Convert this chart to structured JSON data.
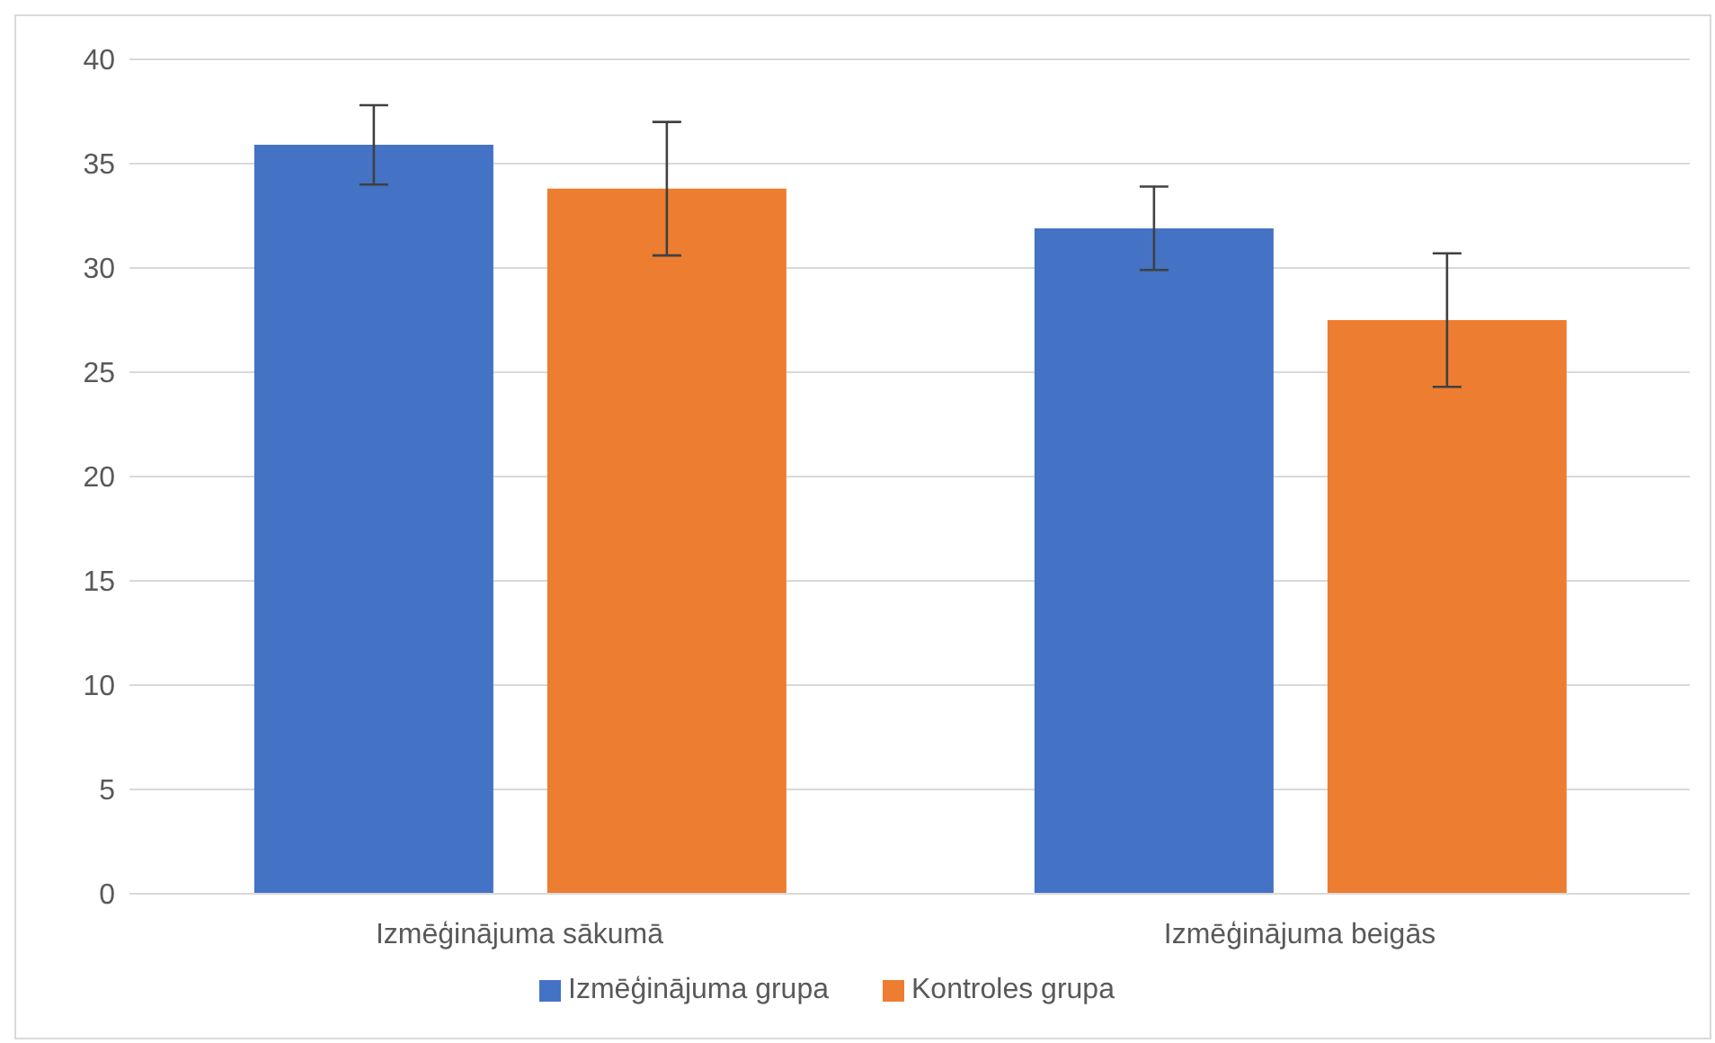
{
  "chart_data": {
    "type": "bar",
    "categories": [
      "Izmēģinājuma sākumā",
      "Izmēģinājuma beigās"
    ],
    "series": [
      {
        "name": "Izmēģinājuma grupa",
        "color": "#4472c4",
        "values": [
          35.9,
          31.9
        ],
        "errors": [
          1.9,
          2.0
        ]
      },
      {
        "name": "Kontroles grupa",
        "color": "#ed7d31",
        "values": [
          33.8,
          27.5
        ],
        "errors": [
          3.2,
          3.2
        ]
      }
    ],
    "ylim": [
      0,
      40
    ],
    "yticks": [
      0,
      5,
      10,
      15,
      20,
      25,
      30,
      35,
      40
    ],
    "grid": "y",
    "legend": "bottom"
  }
}
